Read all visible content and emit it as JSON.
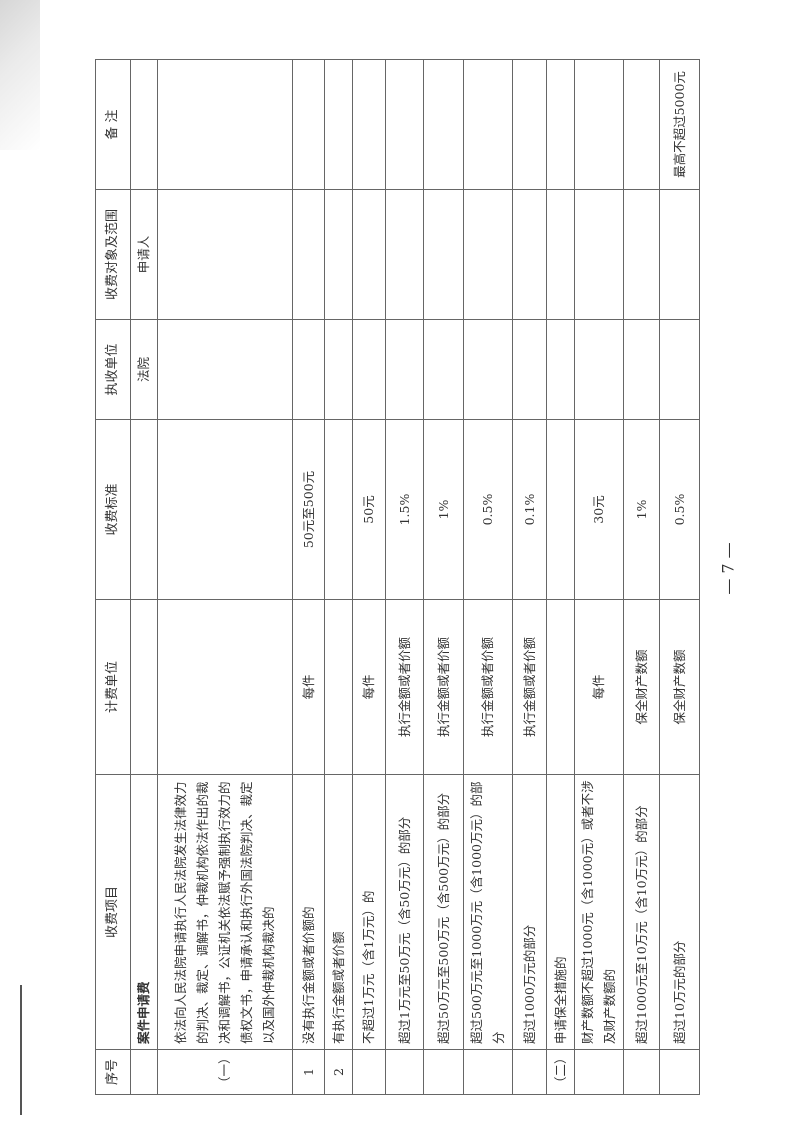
{
  "table": {
    "headers": [
      "序号",
      "收费项目",
      "计费单位",
      "收费标准",
      "执收单位",
      "收费对象及范围",
      "备 注"
    ],
    "rows": [
      [
        "",
        "案件申请费",
        "",
        "",
        "法院",
        "申请人",
        ""
      ],
      [
        "（一）",
        "依法向人民法院申请执行人民法院发生法律效力的判决、裁定、调解书，仲裁机构依法作出的裁决和调解书，公证机关依法赋予强制执行效力的债权文书，申请承认和执行外国法院判决、裁定以及国外仲裁机构裁决的",
        "",
        "",
        "",
        "",
        ""
      ],
      [
        "1",
        "没有执行金额或者价额的",
        "每件",
        "50元至500元",
        "",
        "",
        ""
      ],
      [
        "2",
        "有执行金额或者价额",
        "",
        "",
        "",
        "",
        ""
      ],
      [
        "",
        "不超过1万元（含1万元）的",
        "每件",
        "50元",
        "",
        "",
        ""
      ],
      [
        "",
        "超过1万元至50万元（含50万元）的部分",
        "执行金额或者价额",
        "1.5%",
        "",
        "",
        ""
      ],
      [
        "",
        "超过50万元至500万元（含500万元）的部分",
        "执行金额或者价额",
        "1%",
        "",
        "",
        ""
      ],
      [
        "",
        "超过500万元至1000万元（含1000万元）的部分",
        "执行金额或者价额",
        "0.5%",
        "",
        "",
        ""
      ],
      [
        "",
        "超过1000万元的部分",
        "执行金额或者价额",
        "0.1%",
        "",
        "",
        ""
      ],
      [
        "（二）",
        "申请保全措施的",
        "",
        "",
        "",
        "",
        ""
      ],
      [
        "",
        "财产数额不超过1000元（含1000元）或者不涉及财产数额的",
        "每件",
        "30元",
        "",
        "",
        ""
      ],
      [
        "",
        "超过1000元至10万元（含10万元）的部分",
        "保全财产数额",
        "1%",
        "",
        "",
        ""
      ],
      [
        "",
        "超过10万元的部分",
        "保全财产数额",
        "0.5%",
        "",
        "",
        "最高不超过5000元"
      ]
    ]
  },
  "page_number": "— 7 —"
}
